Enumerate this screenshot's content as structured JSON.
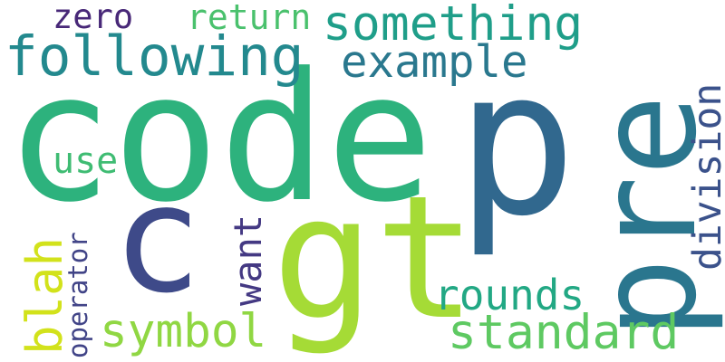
{
  "words": [
    {
      "text": "code",
      "color": "#2db27d"
    },
    {
      "text": "pre",
      "color": "#2a768e"
    },
    {
      "text": "p",
      "color": "#31688e"
    },
    {
      "text": "gt",
      "color": "#a5db36"
    },
    {
      "text": "c",
      "color": "#3e4a89"
    },
    {
      "text": "following",
      "color": "#23898e"
    },
    {
      "text": "something",
      "color": "#1f9e89"
    },
    {
      "text": "example",
      "color": "#2a788e"
    },
    {
      "text": "return",
      "color": "#4ac16d"
    },
    {
      "text": "zero",
      "color": "#482878"
    },
    {
      "text": "division",
      "color": "#3b528b"
    },
    {
      "text": "use",
      "color": "#3fbc73"
    },
    {
      "text": "want",
      "color": "#443983"
    },
    {
      "text": "rounds",
      "color": "#22a884"
    },
    {
      "text": "standard",
      "color": "#5ec962"
    },
    {
      "text": "symbol",
      "color": "#90d743"
    },
    {
      "text": "blah",
      "color": "#d2e21b"
    },
    {
      "text": "operator",
      "color": "#414487"
    }
  ]
}
